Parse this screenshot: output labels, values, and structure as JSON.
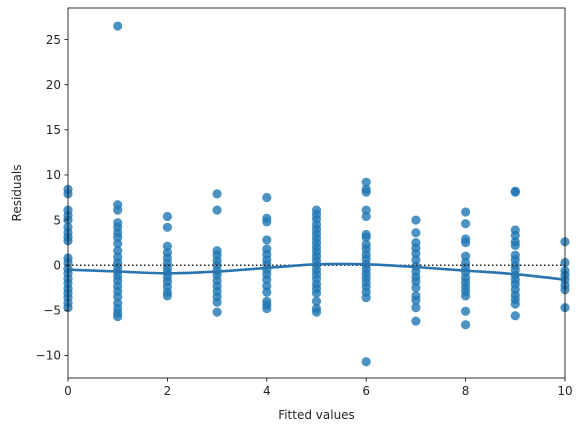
{
  "chart_data": {
    "type": "scatter",
    "title": "",
    "xlabel": "Fitted values",
    "ylabel": "Residuals",
    "xlim": [
      0,
      10
    ],
    "ylim": [
      -12.5,
      28.5
    ],
    "xticks": [
      0,
      2,
      4,
      6,
      8,
      10
    ],
    "yticks": [
      -10,
      -5,
      0,
      5,
      10,
      15,
      20,
      25
    ],
    "grid": false,
    "colors": {
      "points": "#1f77b4",
      "trend": "#2a74b0",
      "reference": "#222222"
    },
    "reference_line": {
      "y": 0,
      "style": "dotted"
    },
    "points": [
      [
        0,
        8.4
      ],
      [
        0,
        7.9
      ],
      [
        0,
        6.1
      ],
      [
        0,
        5.5
      ],
      [
        0,
        5.0
      ],
      [
        0,
        4.2
      ],
      [
        0,
        3.6
      ],
      [
        0,
        3.1
      ],
      [
        0,
        2.7
      ],
      [
        0,
        0.8
      ],
      [
        0,
        0.3
      ],
      [
        0,
        -0.4
      ],
      [
        0,
        -0.9
      ],
      [
        0,
        -1.5
      ],
      [
        0,
        -2.0
      ],
      [
        0,
        -2.6
      ],
      [
        0,
        -3.1
      ],
      [
        0,
        -3.6
      ],
      [
        0,
        -4.2
      ],
      [
        0,
        -4.7
      ],
      [
        1,
        26.5
      ],
      [
        1,
        6.7
      ],
      [
        1,
        6.1
      ],
      [
        1,
        4.7
      ],
      [
        1,
        4.2
      ],
      [
        1,
        3.6
      ],
      [
        1,
        3.1
      ],
      [
        1,
        2.4
      ],
      [
        1,
        1.6
      ],
      [
        1,
        0.9
      ],
      [
        1,
        0.3
      ],
      [
        1,
        -0.2
      ],
      [
        1,
        -0.7
      ],
      [
        1,
        -1.2
      ],
      [
        1,
        -1.7
      ],
      [
        1,
        -2.3
      ],
      [
        1,
        -2.9
      ],
      [
        1,
        -3.5
      ],
      [
        1,
        -4.2
      ],
      [
        1,
        -4.8
      ],
      [
        1,
        -5.3
      ],
      [
        1,
        -5.7
      ],
      [
        2,
        5.4
      ],
      [
        2,
        4.2
      ],
      [
        2,
        2.1
      ],
      [
        2,
        1.4
      ],
      [
        2,
        0.8
      ],
      [
        2,
        0.2
      ],
      [
        2,
        -0.3
      ],
      [
        2,
        -0.8
      ],
      [
        2,
        -1.3
      ],
      [
        2,
        -1.8
      ],
      [
        2,
        -2.4
      ],
      [
        2,
        -3.0
      ],
      [
        2,
        -3.4
      ],
      [
        3,
        7.9
      ],
      [
        3,
        6.1
      ],
      [
        3,
        1.6
      ],
      [
        3,
        1.1
      ],
      [
        3,
        0.5
      ],
      [
        3,
        0.0
      ],
      [
        3,
        -0.6
      ],
      [
        3,
        -1.1
      ],
      [
        3,
        -1.7
      ],
      [
        3,
        -2.3
      ],
      [
        3,
        -2.9
      ],
      [
        3,
        -3.5
      ],
      [
        3,
        -4.1
      ],
      [
        3,
        -5.2
      ],
      [
        4,
        7.5
      ],
      [
        4,
        5.2
      ],
      [
        4,
        4.8
      ],
      [
        4,
        2.8
      ],
      [
        4,
        1.8
      ],
      [
        4,
        1.2
      ],
      [
        4,
        0.6
      ],
      [
        4,
        0.1
      ],
      [
        4,
        -0.5
      ],
      [
        4,
        -1.0
      ],
      [
        4,
        -1.6
      ],
      [
        4,
        -2.3
      ],
      [
        4,
        -3.0
      ],
      [
        4,
        -4.0
      ],
      [
        4,
        -4.4
      ],
      [
        4,
        -4.8
      ],
      [
        5,
        6.1
      ],
      [
        5,
        5.6
      ],
      [
        5,
        5.1
      ],
      [
        5,
        4.5
      ],
      [
        5,
        4.0
      ],
      [
        5,
        3.5
      ],
      [
        5,
        3.0
      ],
      [
        5,
        2.5
      ],
      [
        5,
        2.0
      ],
      [
        5,
        1.5
      ],
      [
        5,
        1.0
      ],
      [
        5,
        0.5
      ],
      [
        5,
        0.0
      ],
      [
        5,
        -0.5
      ],
      [
        5,
        -1.0
      ],
      [
        5,
        -1.5
      ],
      [
        5,
        -2.1
      ],
      [
        5,
        -2.6
      ],
      [
        5,
        -3.1
      ],
      [
        5,
        -4.0
      ],
      [
        5,
        -4.8
      ],
      [
        5,
        -5.2
      ],
      [
        6,
        9.2
      ],
      [
        6,
        8.4
      ],
      [
        6,
        8.1
      ],
      [
        6,
        6.1
      ],
      [
        6,
        5.4
      ],
      [
        6,
        3.4
      ],
      [
        6,
        3.1
      ],
      [
        6,
        2.3
      ],
      [
        6,
        1.8
      ],
      [
        6,
        1.2
      ],
      [
        6,
        0.7
      ],
      [
        6,
        0.1
      ],
      [
        6,
        -0.4
      ],
      [
        6,
        -0.9
      ],
      [
        6,
        -1.4
      ],
      [
        6,
        -1.9
      ],
      [
        6,
        -2.4
      ],
      [
        6,
        -3.0
      ],
      [
        6,
        -3.6
      ],
      [
        6,
        -10.7
      ],
      [
        7,
        5.0
      ],
      [
        7,
        3.6
      ],
      [
        7,
        2.5
      ],
      [
        7,
        1.9
      ],
      [
        7,
        1.3
      ],
      [
        7,
        0.6
      ],
      [
        7,
        -0.1
      ],
      [
        7,
        -0.7
      ],
      [
        7,
        -1.3
      ],
      [
        7,
        -1.8
      ],
      [
        7,
        -2.5
      ],
      [
        7,
        -3.4
      ],
      [
        7,
        -3.9
      ],
      [
        7,
        -4.7
      ],
      [
        7,
        -6.2
      ],
      [
        8,
        5.9
      ],
      [
        8,
        4.6
      ],
      [
        8,
        2.9
      ],
      [
        8,
        2.5
      ],
      [
        8,
        1.0
      ],
      [
        8,
        0.3
      ],
      [
        8,
        -0.3
      ],
      [
        8,
        -0.8
      ],
      [
        8,
        -1.4
      ],
      [
        8,
        -1.9
      ],
      [
        8,
        -2.4
      ],
      [
        8,
        -2.9
      ],
      [
        8,
        -3.4
      ],
      [
        8,
        -5.1
      ],
      [
        8,
        -6.6
      ],
      [
        9,
        8.2
      ],
      [
        9,
        8.1
      ],
      [
        9,
        3.9
      ],
      [
        9,
        3.3
      ],
      [
        9,
        2.6
      ],
      [
        9,
        2.2
      ],
      [
        9,
        1.1
      ],
      [
        9,
        0.6
      ],
      [
        9,
        0.0
      ],
      [
        9,
        -0.5
      ],
      [
        9,
        -1.1
      ],
      [
        9,
        -1.6
      ],
      [
        9,
        -2.1
      ],
      [
        9,
        -2.7
      ],
      [
        9,
        -3.3
      ],
      [
        9,
        -3.8
      ],
      [
        9,
        -4.3
      ],
      [
        9,
        -5.6
      ],
      [
        10,
        2.6
      ],
      [
        10,
        0.3
      ],
      [
        10,
        -0.6
      ],
      [
        10,
        -1.1
      ],
      [
        10,
        -1.6
      ],
      [
        10,
        -2.2
      ],
      [
        10,
        -2.7
      ],
      [
        10,
        -4.7
      ]
    ],
    "trend": {
      "x": [
        0,
        1,
        2,
        3,
        4,
        5,
        6,
        7,
        8,
        9,
        10
      ],
      "y": [
        -0.5,
        -0.7,
        -0.9,
        -0.7,
        -0.3,
        0.1,
        0.1,
        -0.2,
        -0.6,
        -1.0,
        -1.6
      ]
    }
  }
}
